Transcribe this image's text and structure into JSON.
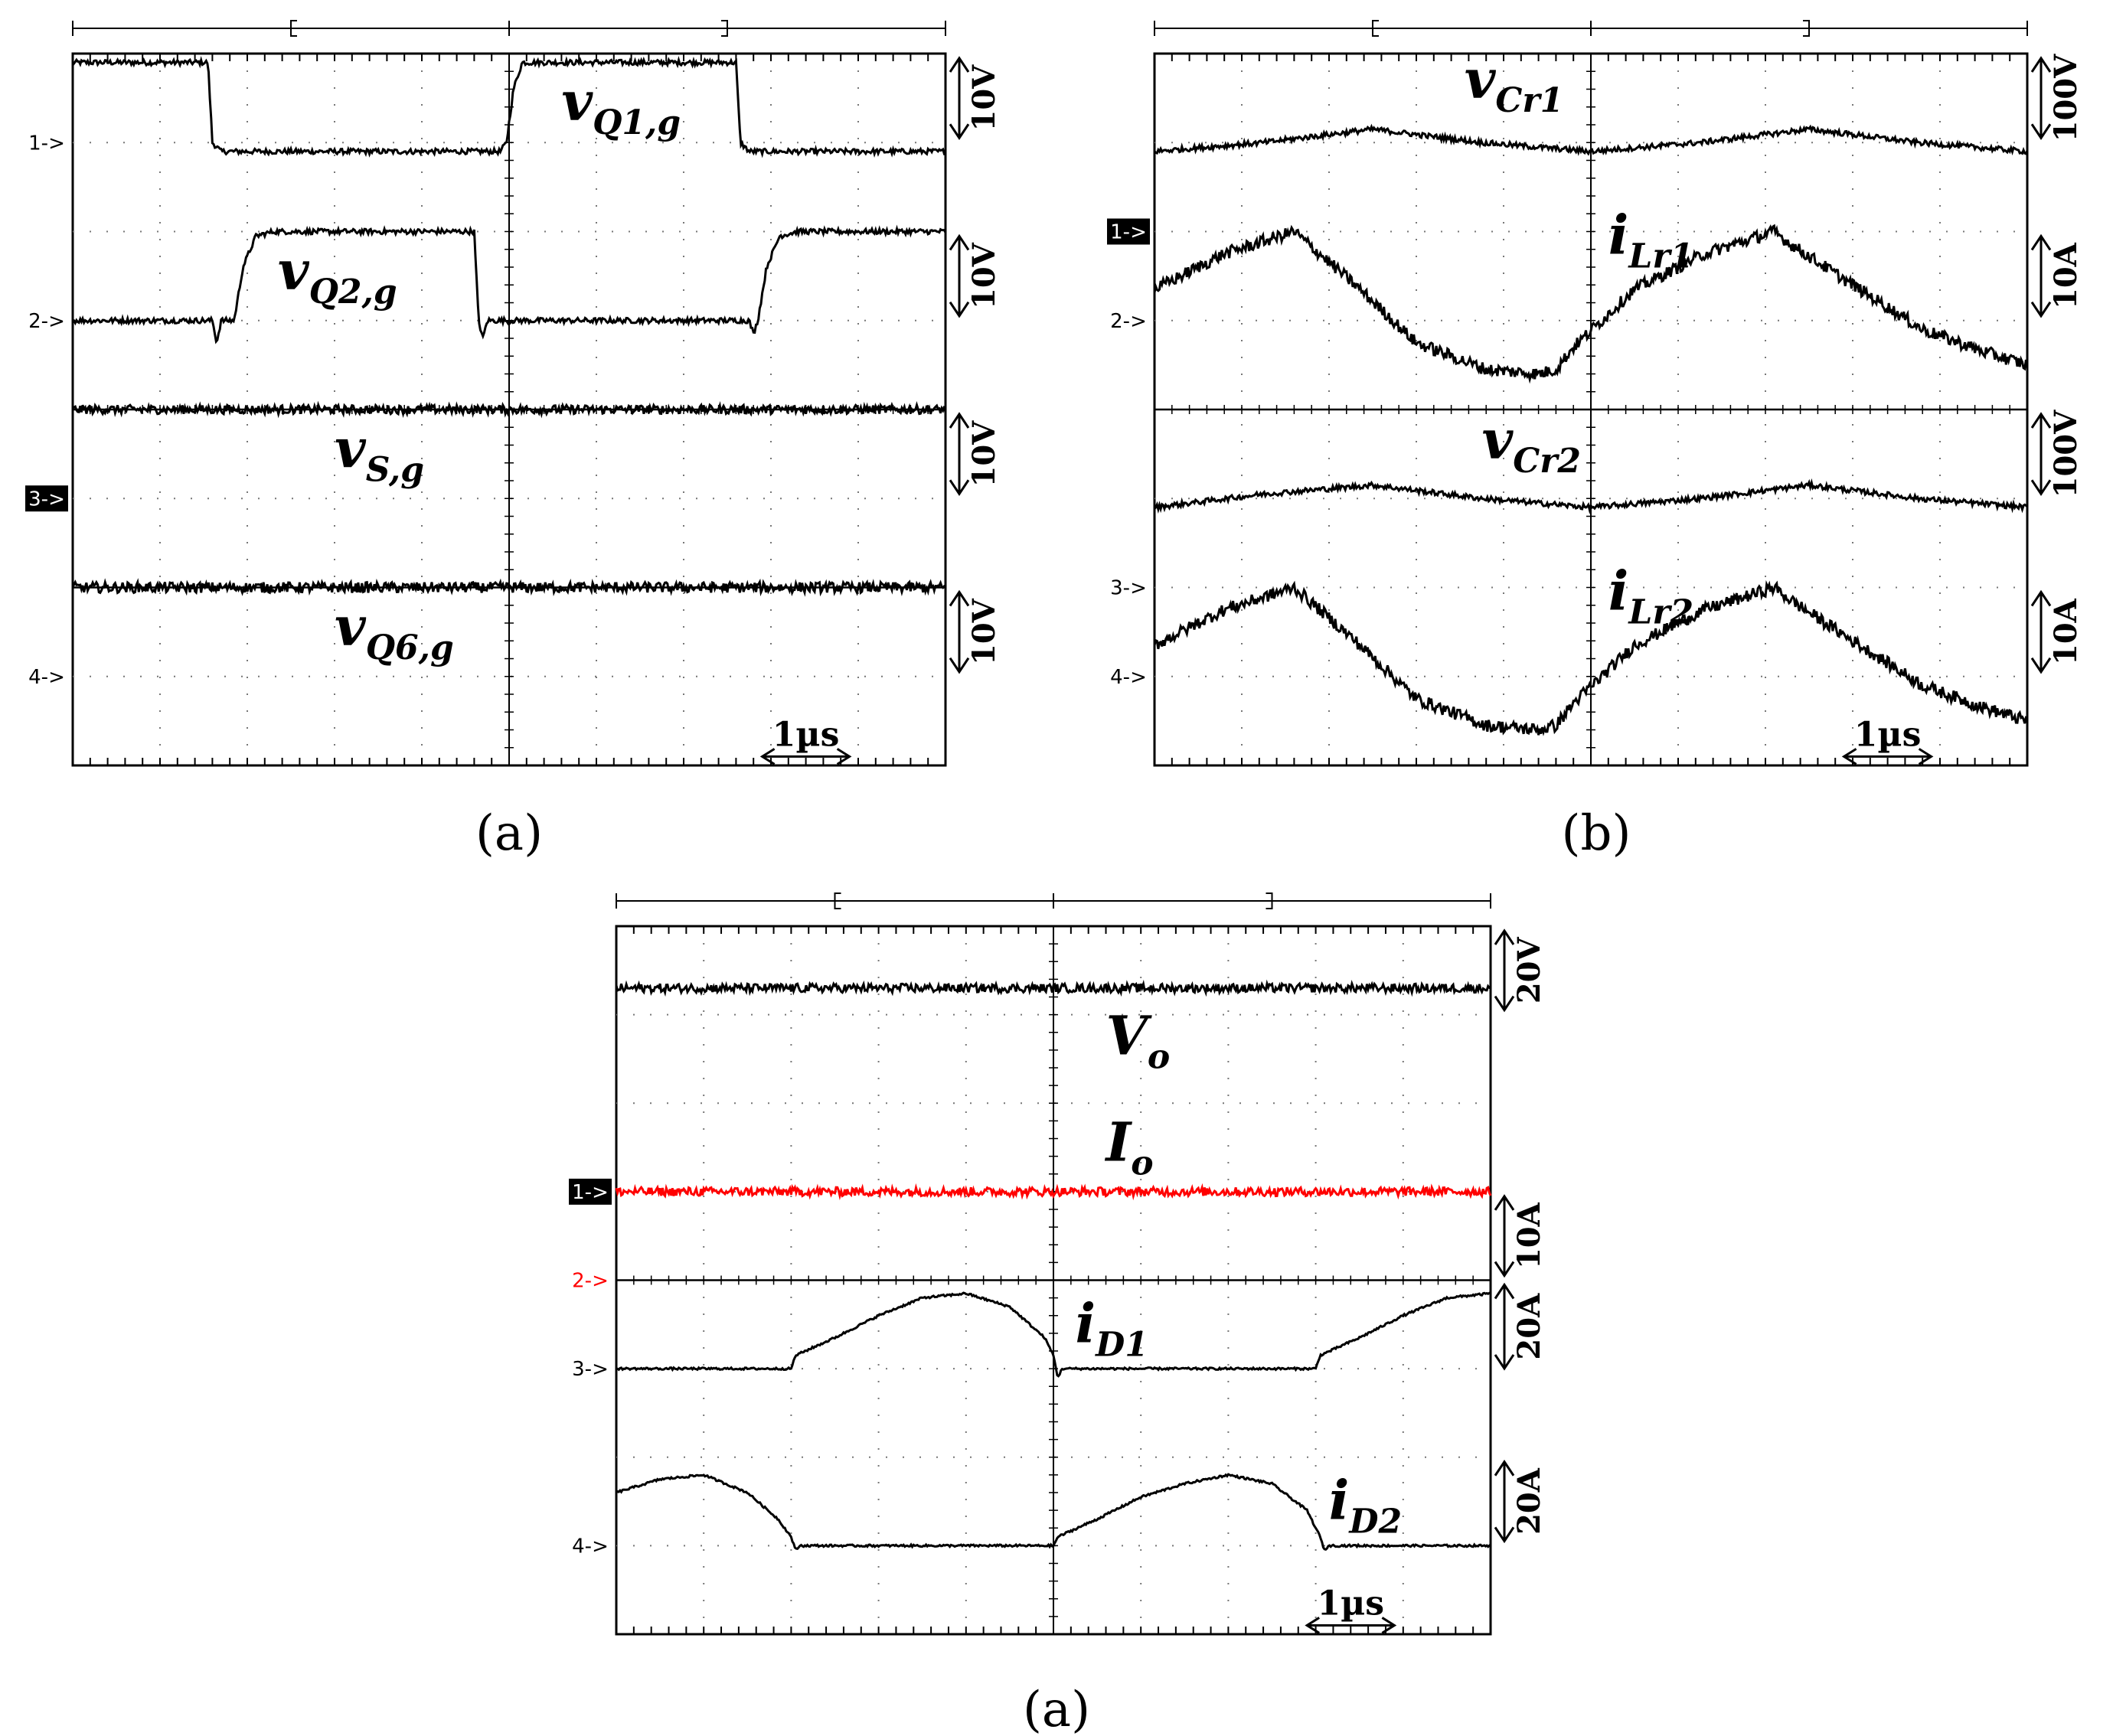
{
  "figure": {
    "captions": [
      "(a)",
      "(b)",
      "(a)"
    ]
  },
  "chart_data": [
    {
      "type": "line",
      "title": "(a)",
      "time_scale": "1µs",
      "x": {
        "unit": "div",
        "range": [
          0,
          10
        ]
      },
      "y": {
        "unit": "div",
        "range": [
          0,
          8
        ]
      },
      "channel_markers": [
        {
          "text": "1->",
          "level": 7,
          "highlight": false
        },
        {
          "text": "2->",
          "level": 5,
          "highlight": false
        },
        {
          "text": "3->",
          "level": 3,
          "highlight": true
        },
        {
          "text": "4->",
          "level": 1,
          "highlight": false
        }
      ],
      "scale_bars": [
        {
          "text": "10V",
          "top": 8.0,
          "bottom": 7.0
        },
        {
          "text": "10V",
          "top": 6.0,
          "bottom": 5.0
        },
        {
          "text": "10V",
          "top": 4.0,
          "bottom": 3.0
        },
        {
          "text": "10V",
          "top": 2.0,
          "bottom": 1.0
        }
      ],
      "labels": [
        {
          "main": "v",
          "sub": "Q1,g",
          "x": 5.6,
          "y": 7.25
        },
        {
          "main": "v",
          "sub": "Q2,g",
          "x": 2.35,
          "y": 5.35
        },
        {
          "main": "v",
          "sub": "S,g",
          "x": 3.0,
          "y": 3.35
        },
        {
          "main": "v",
          "sub": "Q6,g",
          "x": 3.0,
          "y": 1.35
        }
      ],
      "series": [
        {
          "name": "vQ1,g",
          "color": "#000000",
          "noise": 0.03,
          "points": [
            [
              0,
              7.9
            ],
            [
              1.55,
              7.9
            ],
            [
              1.6,
              7.0
            ],
            [
              1.7,
              6.9
            ],
            [
              3.5,
              6.9
            ],
            [
              4.9,
              6.9
            ],
            [
              4.97,
              7.0
            ],
            [
              5.05,
              7.6
            ],
            [
              5.15,
              7.9
            ],
            [
              7.6,
              7.9
            ],
            [
              7.65,
              7.0
            ],
            [
              7.75,
              6.9
            ],
            [
              10,
              6.9
            ]
          ]
        },
        {
          "name": "vQ2,g",
          "color": "#000000",
          "noise": 0.03,
          "points": [
            [
              0,
              5.0
            ],
            [
              1.6,
              5.0
            ],
            [
              1.65,
              4.75
            ],
            [
              1.7,
              5.0
            ],
            [
              1.85,
              5.0
            ],
            [
              1.95,
              5.6
            ],
            [
              2.1,
              5.95
            ],
            [
              2.3,
              6.0
            ],
            [
              4.6,
              6.0
            ],
            [
              4.65,
              5.0
            ],
            [
              4.7,
              4.8
            ],
            [
              4.75,
              5.0
            ],
            [
              7.75,
              5.0
            ],
            [
              7.8,
              4.85
            ],
            [
              7.85,
              5.0
            ],
            [
              7.95,
              5.6
            ],
            [
              8.1,
              5.95
            ],
            [
              8.3,
              6.0
            ],
            [
              10,
              6.0
            ]
          ]
        },
        {
          "name": "vS,g",
          "color": "#000000",
          "noise": 0.05,
          "points": [
            [
              0,
              4.0
            ],
            [
              10,
              4.0
            ]
          ]
        },
        {
          "name": "vQ6,g",
          "color": "#000000",
          "noise": 0.06,
          "points": [
            [
              0,
              2.0
            ],
            [
              10,
              2.0
            ]
          ]
        }
      ],
      "dividers": [
        4.0,
        2.0
      ]
    },
    {
      "type": "line",
      "title": "(b)",
      "time_scale": "1µs",
      "x": {
        "unit": "div",
        "range": [
          0,
          10
        ]
      },
      "y": {
        "unit": "div",
        "range": [
          0,
          8
        ]
      },
      "channel_markers": [
        {
          "text": "1->",
          "level": 6,
          "highlight": true
        },
        {
          "text": "2->",
          "level": 5,
          "highlight": false
        },
        {
          "text": "3->",
          "level": 2,
          "highlight": false
        },
        {
          "text": "4->",
          "level": 1,
          "highlight": false
        }
      ],
      "scale_bars": [
        {
          "text": "100V",
          "top": 8.0,
          "bottom": 7.0
        },
        {
          "text": "10A",
          "top": 6.0,
          "bottom": 5.0
        },
        {
          "text": "100V",
          "top": 4.0,
          "bottom": 3.0
        },
        {
          "text": "10A",
          "top": 2.0,
          "bottom": 1.0
        }
      ],
      "labels": [
        {
          "main": "v",
          "sub": "Cr1",
          "x": 3.55,
          "y": 7.5
        },
        {
          "main": "i",
          "sub": "Lr1",
          "x": 5.2,
          "y": 5.75
        },
        {
          "main": "v",
          "sub": "Cr2",
          "x": 3.75,
          "y": 3.45
        },
        {
          "main": "i",
          "sub": "Lr2",
          "x": 5.2,
          "y": 1.75
        }
      ],
      "series": [
        {
          "name": "vCr1",
          "color": "#000000",
          "noise": 0.03,
          "points": [
            [
              0,
              6.9
            ],
            [
              1.25,
              7.0
            ],
            [
              2.5,
              7.15
            ],
            [
              3.75,
              7.0
            ],
            [
              5.0,
              6.9
            ],
            [
              6.25,
              7.0
            ],
            [
              7.5,
              7.15
            ],
            [
              8.75,
              7.0
            ],
            [
              10,
              6.9
            ]
          ]
        },
        {
          "name": "iLr1",
          "color": "#000000",
          "noise": 0.07,
          "points": [
            [
              0,
              5.35
            ],
            [
              0.8,
              5.75
            ],
            [
              1.6,
              6.0
            ],
            [
              2.3,
              5.4
            ],
            [
              3.0,
              4.75
            ],
            [
              3.8,
              4.45
            ],
            [
              4.4,
              4.4
            ],
            [
              4.6,
              4.45
            ],
            [
              4.8,
              4.7
            ],
            [
              5.5,
              5.35
            ],
            [
              6.3,
              5.75
            ],
            [
              7.1,
              6.0
            ],
            [
              7.3,
              5.85
            ],
            [
              8.0,
              5.4
            ],
            [
              8.8,
              4.9
            ],
            [
              9.5,
              4.65
            ],
            [
              10,
              4.5
            ]
          ]
        },
        {
          "name": "vCr2",
          "color": "#000000",
          "noise": 0.03,
          "points": [
            [
              0,
              2.9
            ],
            [
              1.25,
              3.05
            ],
            [
              2.5,
              3.15
            ],
            [
              3.75,
              3.0
            ],
            [
              5.0,
              2.9
            ],
            [
              6.25,
              3.0
            ],
            [
              7.5,
              3.15
            ],
            [
              8.75,
              3.0
            ],
            [
              10,
              2.9
            ]
          ]
        },
        {
          "name": "iLr2",
          "color": "#000000",
          "noise": 0.07,
          "points": [
            [
              0,
              1.35
            ],
            [
              0.8,
              1.75
            ],
            [
              1.6,
              2.0
            ],
            [
              2.3,
              1.4
            ],
            [
              3.0,
              0.75
            ],
            [
              3.8,
              0.45
            ],
            [
              4.4,
              0.4
            ],
            [
              4.6,
              0.45
            ],
            [
              4.8,
              0.7
            ],
            [
              5.5,
              1.35
            ],
            [
              6.3,
              1.75
            ],
            [
              7.1,
              2.0
            ],
            [
              7.3,
              1.85
            ],
            [
              8.0,
              1.4
            ],
            [
              8.8,
              0.9
            ],
            [
              9.5,
              0.65
            ],
            [
              10,
              0.5
            ]
          ]
        }
      ],
      "dividers": [
        4.0
      ]
    },
    {
      "type": "line",
      "title": "(a)",
      "time_scale": "1µs",
      "x": {
        "unit": "div",
        "range": [
          0,
          10
        ]
      },
      "y": {
        "unit": "div",
        "range": [
          0,
          8
        ]
      },
      "channel_markers": [
        {
          "text": "1->",
          "level": 5,
          "highlight": true
        },
        {
          "text": "2->",
          "level": 4,
          "highlight": false,
          "color": "#ff0000"
        },
        {
          "text": "3->",
          "level": 3,
          "highlight": false
        },
        {
          "text": "4->",
          "level": 1,
          "highlight": false
        }
      ],
      "scale_bars": [
        {
          "text": "20V",
          "top": 8.0,
          "bottom": 7.0
        },
        {
          "text": "10A",
          "top": 5.0,
          "bottom": 4.0
        },
        {
          "text": "20A",
          "top": 4.0,
          "bottom": 2.95
        },
        {
          "text": "20A",
          "top": 2.0,
          "bottom": 1.0
        }
      ],
      "labels": [
        {
          "main": "V",
          "sub": "o",
          "x": 5.6,
          "y": 6.55
        },
        {
          "main": "I",
          "sub": "o",
          "x": 5.6,
          "y": 5.35
        },
        {
          "main": "i",
          "sub": "D1",
          "x": 5.25,
          "y": 3.3
        },
        {
          "main": "i",
          "sub": "D2",
          "x": 8.15,
          "y": 1.3
        }
      ],
      "series": [
        {
          "name": "Vo",
          "color": "#000000",
          "noise": 0.05,
          "points": [
            [
              0,
              7.3
            ],
            [
              10,
              7.3
            ]
          ]
        },
        {
          "name": "Io",
          "color": "#ff0000",
          "noise": 0.05,
          "points": [
            [
              0,
              5.0
            ],
            [
              10,
              5.0
            ]
          ]
        },
        {
          "name": "iD1",
          "color": "#000000",
          "noise": 0.012,
          "points": [
            [
              0,
              3.0
            ],
            [
              2.0,
              3.0
            ],
            [
              2.05,
              3.15
            ],
            [
              2.5,
              3.35
            ],
            [
              3.0,
              3.6
            ],
            [
              3.5,
              3.8
            ],
            [
              4.0,
              3.85
            ],
            [
              4.5,
              3.7
            ],
            [
              4.9,
              3.35
            ],
            [
              5.0,
              3.15
            ],
            [
              5.05,
              2.9
            ],
            [
              5.1,
              3.0
            ],
            [
              8.0,
              3.0
            ],
            [
              8.05,
              3.15
            ],
            [
              8.5,
              3.35
            ],
            [
              9.0,
              3.6
            ],
            [
              9.5,
              3.8
            ],
            [
              10,
              3.85
            ]
          ]
        },
        {
          "name": "iD2",
          "color": "#000000",
          "noise": 0.012,
          "points": [
            [
              0,
              1.6
            ],
            [
              0.5,
              1.75
            ],
            [
              1.0,
              1.8
            ],
            [
              1.5,
              1.6
            ],
            [
              1.85,
              1.3
            ],
            [
              2.0,
              1.1
            ],
            [
              2.05,
              0.95
            ],
            [
              2.1,
              1.0
            ],
            [
              5.0,
              1.0
            ],
            [
              5.05,
              1.1
            ],
            [
              5.5,
              1.3
            ],
            [
              6.0,
              1.55
            ],
            [
              6.5,
              1.7
            ],
            [
              7.0,
              1.8
            ],
            [
              7.5,
              1.7
            ],
            [
              7.9,
              1.4
            ],
            [
              8.05,
              1.1
            ],
            [
              8.1,
              0.95
            ],
            [
              8.15,
              1.0
            ],
            [
              10,
              1.0
            ]
          ]
        }
      ],
      "dividers": [
        4.0
      ]
    }
  ]
}
